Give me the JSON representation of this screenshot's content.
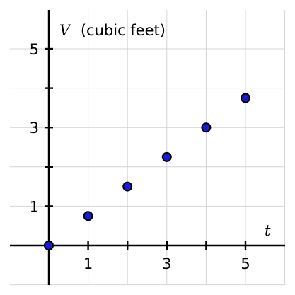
{
  "chart_data": {
    "type": "scatter",
    "x": [
      0,
      1,
      2,
      3,
      4,
      5
    ],
    "y": [
      0,
      0.75,
      1.5,
      2.25,
      3,
      3.75
    ],
    "xlabel": "t",
    "ylabel_var": "V",
    "ylabel_unit": "(cubic feet)",
    "xlim": [
      -1,
      6
    ],
    "ylim": [
      -1,
      6
    ],
    "x_tick_labels": [
      "1",
      "3",
      "5"
    ],
    "y_tick_labels": [
      "1",
      "3",
      "5"
    ],
    "grid": true,
    "colors": {
      "point_fill": "#1a1ad6",
      "grid": "#d4d4d4",
      "axis": "#000000"
    }
  }
}
